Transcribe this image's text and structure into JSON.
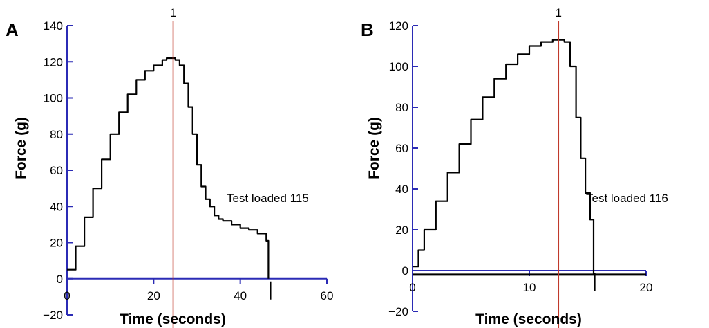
{
  "colors": {
    "axis": "#2b2bb5",
    "curve": "#000000",
    "marker": "#c0392b",
    "text": "#000000"
  },
  "chart_data": [
    {
      "panel": "A",
      "type": "line",
      "xlabel": "Time (seconds)",
      "ylabel": "Force (g)",
      "xlim": [
        0,
        60
      ],
      "ylim": [
        -20,
        140
      ],
      "x_ticks": [
        "0",
        "20",
        "40",
        "60"
      ],
      "x_tick_values": [
        0,
        20,
        40,
        60
      ],
      "y_ticks": [
        "140",
        "120",
        "100",
        "80",
        "60",
        "40",
        "20",
        "0",
        "−20"
      ],
      "y_tick_values": [
        140,
        120,
        100,
        80,
        60,
        40,
        20,
        0,
        -20
      ],
      "marker": {
        "label": "1",
        "x": 24.5
      },
      "annotation": "Test loaded 115",
      "end_tick_x": 47,
      "series": [
        {
          "x": [
            0,
            2,
            4,
            6,
            8,
            10,
            12,
            14,
            16,
            18,
            20,
            22,
            23,
            24,
            25,
            26,
            27,
            28,
            29,
            30,
            31,
            32,
            33,
            34,
            35,
            36,
            38,
            40,
            42,
            44,
            46,
            46.5,
            46.5
          ],
          "y": [
            5,
            18,
            34,
            50,
            66,
            80,
            92,
            102,
            110,
            115,
            118,
            121,
            122,
            122,
            121,
            118,
            108,
            95,
            80,
            63,
            51,
            44,
            40,
            35,
            33,
            32,
            30,
            28,
            27,
            25,
            21,
            20,
            0
          ]
        }
      ]
    },
    {
      "panel": "B",
      "type": "line",
      "xlabel": "Time (seconds)",
      "ylabel": "Force (g)",
      "xlim": [
        0,
        20
      ],
      "ylim": [
        -20,
        120
      ],
      "x_ticks": [
        "0",
        "10",
        "20"
      ],
      "x_tick_values": [
        0,
        10,
        20
      ],
      "y_ticks": [
        "120",
        "100",
        "80",
        "60",
        "40",
        "20",
        "0",
        "−20"
      ],
      "y_tick_values": [
        120,
        100,
        80,
        60,
        40,
        20,
        0,
        -20
      ],
      "marker": {
        "label": "1",
        "x": 12.5
      },
      "annotation": "Test loaded 116",
      "end_tick_x": 15.6,
      "baseline": -2,
      "series": [
        {
          "x": [
            0,
            0.5,
            1,
            2,
            3,
            4,
            5,
            6,
            7,
            8,
            9,
            10,
            11,
            12,
            12.5,
            13,
            13.5,
            14,
            14.4,
            14.8,
            15.2,
            15.5,
            15.5
          ],
          "y": [
            2,
            10,
            20,
            34,
            48,
            62,
            74,
            85,
            94,
            101,
            106,
            110,
            112,
            113,
            113,
            112,
            100,
            75,
            55,
            38,
            25,
            18,
            -2
          ]
        }
      ]
    }
  ]
}
